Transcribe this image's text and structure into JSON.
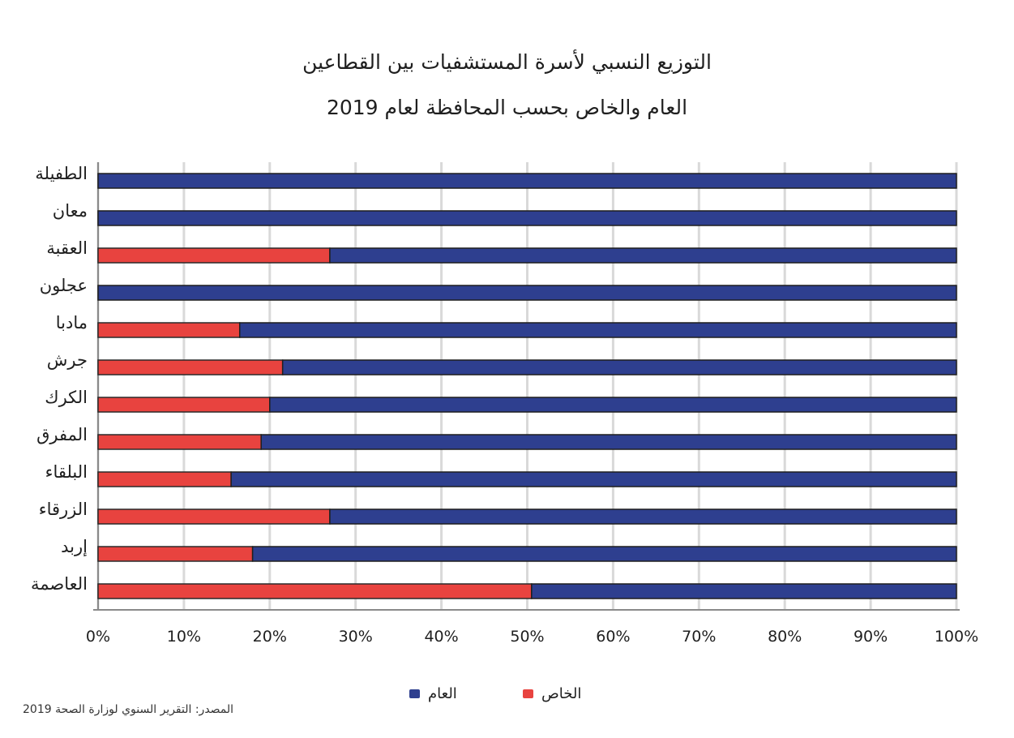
{
  "title": "التوزيع النسبي لأسرة المستشفيات بين القطاعين",
  "subtitle": "العام والخاص بحسب المحافظة لعام 2019",
  "source": "المصدر: التقرير السنوي لوزارة الصحة 2019",
  "colors": {
    "public": "#2e3f8f",
    "private": "#e8433f"
  },
  "chart_data": {
    "type": "bar",
    "orientation": "horizontal",
    "stacked": true,
    "categories": [
      "الطفيلة",
      "معان",
      "العقبة",
      "عجلون",
      "مادبا",
      "جرش",
      "الكرك",
      "المفرق",
      "البلقاء",
      "الزرقاء",
      "إربد",
      "العاصمة"
    ],
    "series": [
      {
        "name": "الخاص",
        "values": [
          0,
          0,
          27,
          0,
          16.5,
          21.5,
          20,
          19,
          15.5,
          27,
          18,
          50.5
        ]
      },
      {
        "name": "العام",
        "values": [
          100,
          100,
          73,
          100,
          83.5,
          78.5,
          80,
          81,
          84.5,
          73,
          82,
          49.5
        ]
      }
    ],
    "xlim": [
      0,
      100
    ],
    "x_ticks": [
      "0%",
      "10%",
      "20%",
      "30%",
      "40%",
      "50%",
      "60%",
      "70%",
      "80%",
      "90%",
      "100%"
    ],
    "grid": true,
    "legend_position": "bottom"
  }
}
